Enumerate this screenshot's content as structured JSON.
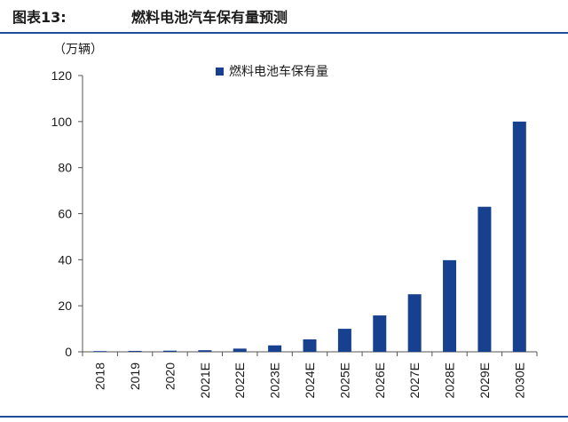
{
  "header": {
    "figure_label": "图表13:",
    "figure_title": "燃料电池汽车保有量预测"
  },
  "chart_data": {
    "type": "bar",
    "title": "燃料电池汽车保有量预测",
    "unit_label": "（万辆）",
    "legend": [
      "燃料电池车保有量"
    ],
    "legend_position": "top-center",
    "categories": [
      "2018",
      "2019",
      "2020",
      "2021E",
      "2022E",
      "2023E",
      "2024E",
      "2025E",
      "2026E",
      "2027E",
      "2028E",
      "2029E",
      "2030E"
    ],
    "series": [
      {
        "name": "燃料电池车保有量",
        "values": [
          0.2,
          0.4,
          0.5,
          0.7,
          1.4,
          2.8,
          5.4,
          10.0,
          15.8,
          25.0,
          39.8,
          63.0,
          100.0
        ]
      }
    ],
    "ylim": [
      0,
      120
    ],
    "yticks": [
      0,
      20,
      40,
      60,
      80,
      100,
      120
    ],
    "grid": false,
    "bar_color": "#17418f",
    "axis_color": "#555555"
  }
}
